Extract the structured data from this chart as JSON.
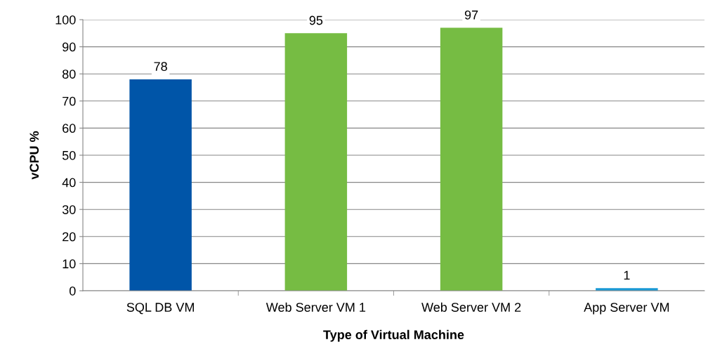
{
  "chart_data": {
    "type": "bar",
    "xlabel": "Type of Virtual Machine",
    "ylabel": "vCPU %",
    "categories": [
      "SQL DB VM",
      "Web Server VM 1",
      "Web Server VM 2",
      "App Server VM"
    ],
    "values": [
      78,
      95,
      97,
      1
    ],
    "colors": [
      "#0055a8",
      "#76bc43",
      "#76bc43",
      "#1b9ad6"
    ],
    "ylim": [
      0,
      100
    ],
    "yticks": [
      0,
      10,
      20,
      30,
      40,
      50,
      60,
      70,
      80,
      90,
      100
    ],
    "grid": "y",
    "data_labels": true
  }
}
